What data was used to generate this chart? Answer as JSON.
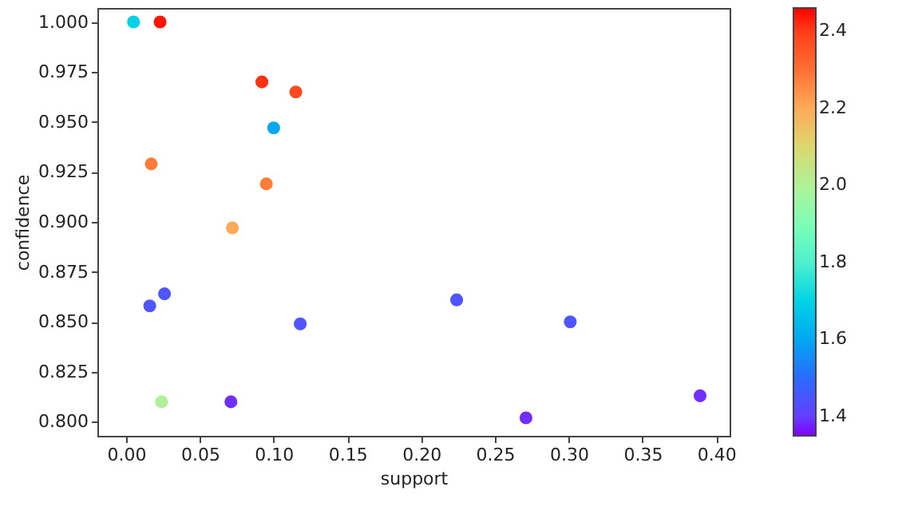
{
  "chart_data": {
    "type": "scatter",
    "xlabel": "support",
    "ylabel": "confidence",
    "x": [
      0.005,
      0.023,
      0.092,
      0.115,
      0.1,
      0.017,
      0.095,
      0.072,
      0.016,
      0.026,
      0.118,
      0.024,
      0.071,
      0.224,
      0.301,
      0.271,
      0.389
    ],
    "values": [
      1.0,
      1.0,
      0.97,
      0.965,
      0.947,
      0.929,
      0.919,
      0.897,
      0.858,
      0.864,
      0.849,
      0.81,
      0.81,
      0.861,
      0.85,
      0.802,
      0.813
    ],
    "cvalues": [
      1.7,
      2.45,
      2.42,
      2.38,
      1.6,
      2.28,
      2.28,
      2.2,
      1.45,
      1.45,
      1.45,
      2.0,
      1.38,
      1.45,
      1.45,
      1.38,
      1.38
    ],
    "xlim": [
      -0.0195,
      0.409
    ],
    "ylim": [
      0.793,
      1.007
    ],
    "xticks": [
      {
        "value": 0,
        "label": "0.00"
      },
      0.05,
      {
        "value": 0.1,
        "label": "0.10"
      },
      0.15,
      {
        "value": 0.2,
        "label": "0.20"
      },
      0.25,
      {
        "value": 0.3,
        "label": "0.30"
      },
      0.35,
      {
        "value": 0.4,
        "label": "0.40"
      }
    ],
    "yticks": [
      {
        "value": 0.8,
        "label": "0.800"
      },
      0.825,
      {
        "value": 0.85,
        "label": "0.850"
      },
      0.875,
      {
        "value": 0.9,
        "label": "0.900"
      },
      0.925,
      {
        "value": 0.95,
        "label": "0.950"
      },
      0.975,
      {
        "value": 1,
        "label": "1.000"
      }
    ],
    "clim": [
      1.35,
      2.46
    ],
    "cticks": [
      1.4,
      1.6,
      1.8,
      {
        "value": 2,
        "label": "2.0"
      },
      2.2,
      2.4
    ],
    "marker": "circle",
    "grid": false
  }
}
